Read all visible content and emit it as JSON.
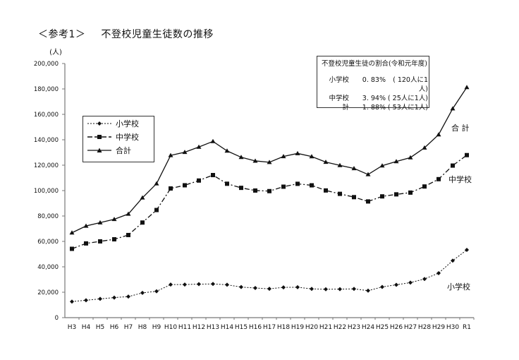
{
  "header": {
    "ref": "＜参考1＞",
    "title": "不登校児童生徒数の推移"
  },
  "annotation": {
    "title": "不登校児童生徒の割合(令和元年度)",
    "rows": [
      {
        "label": "小学校",
        "pct": "0. 83%",
        "ratio": "(  120人に1人)"
      },
      {
        "label": "中学校",
        "pct": "3. 94%",
        "ratio": "(   25人に1人)"
      },
      {
        "label": "計",
        "pct": "1. 88%",
        "ratio": "(   53人に1人)"
      }
    ]
  },
  "legend": {
    "items": [
      "小学校",
      "中学校",
      "合計"
    ]
  },
  "series_labels": {
    "total": "合 計",
    "middle": "中学校",
    "elementary": "小学校"
  },
  "chart_data": {
    "type": "line",
    "title": "不登校児童生徒数の推移",
    "xlabel": "",
    "ylabel": "(人)",
    "ylim": [
      0,
      200000
    ],
    "yticks": [
      0,
      20000,
      40000,
      60000,
      80000,
      100000,
      120000,
      140000,
      160000,
      180000,
      200000
    ],
    "ytick_labels": [
      "0",
      "20,000",
      "40,000",
      "60,000",
      "80,000",
      "100,000",
      "120,000",
      "140,000",
      "160,000",
      "180,000",
      "200,000"
    ],
    "grid": false,
    "legend_position": "upper-left inside",
    "categories": [
      "H3",
      "H4",
      "H5",
      "H6",
      "H7",
      "H8",
      "H9",
      "H10",
      "H11",
      "H12",
      "H13",
      "H14",
      "H15",
      "H16",
      "H17",
      "H18",
      "H19",
      "H20",
      "H21",
      "H22",
      "H23",
      "H24",
      "H25",
      "H26",
      "H27",
      "H28",
      "H29",
      "H30",
      "R1"
    ],
    "series": [
      {
        "name": "小学校",
        "style": "dotted-diamond",
        "values": [
          12645,
          13710,
          14769,
          15786,
          16569,
          19498,
          20765,
          26017,
          26047,
          26373,
          26511,
          25869,
          24077,
          23318,
          22709,
          23825,
          23927,
          22652,
          22327,
          22463,
          22622,
          21243,
          24175,
          25864,
          27583,
          30448,
          35032,
          44841,
          53350
        ]
      },
      {
        "name": "中学校",
        "style": "dashdot-square",
        "values": [
          54172,
          58421,
          60039,
          61663,
          65022,
          74853,
          84701,
          101675,
          104180,
          107913,
          112211,
          105383,
          102149,
          100040,
          99578,
          103069,
          105328,
          104153,
          100105,
          97428,
          94836,
          91446,
          95442,
          97033,
          98408,
          103235,
          108999,
          119687,
          127922
        ]
      },
      {
        "name": "合計",
        "style": "solid-triangle",
        "values": [
          66817,
          72131,
          74808,
          77449,
          81591,
          94351,
          105466,
          127692,
          130227,
          134286,
          138722,
          131252,
          126226,
          123358,
          122287,
          126894,
          129255,
          126805,
          122432,
          119891,
          117458,
          112689,
          119617,
          122897,
          125991,
          133683,
          144031,
          164528,
          181272
        ]
      }
    ]
  }
}
